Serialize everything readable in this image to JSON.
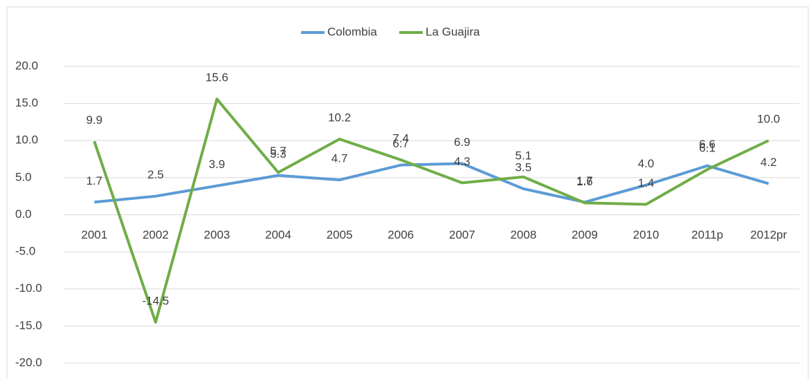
{
  "chart_data": {
    "type": "line",
    "categories": [
      "2001",
      "2002",
      "2003",
      "2004",
      "2005",
      "2006",
      "2007",
      "2008",
      "2009",
      "2010",
      "2011p",
      "2012pr"
    ],
    "series": [
      {
        "name": "Colombia",
        "color": "#5b9bd5",
        "values": [
          1.7,
          2.5,
          3.9,
          5.3,
          4.7,
          6.7,
          6.9,
          3.5,
          1.7,
          4.0,
          6.6,
          4.2
        ],
        "value_labels": [
          "1.7",
          "2.5",
          "3.9",
          "5.3",
          "4.7",
          "6.7",
          "6.9",
          "3.5",
          "1.7",
          "4.0",
          "6.6",
          "4.2"
        ]
      },
      {
        "name": "La Guajira",
        "color": "#70ad47",
        "values": [
          9.9,
          -14.5,
          15.6,
          5.7,
          10.2,
          7.4,
          4.3,
          5.1,
          1.6,
          1.4,
          6.1,
          10.0
        ],
        "value_labels": [
          "9.9",
          "-14.5",
          "15.6",
          "5.7",
          "10.2",
          "7.4",
          "4.3",
          "5.1",
          "1.6",
          "1.4",
          "6.1",
          "10.0"
        ]
      }
    ],
    "ylim": [
      -20,
      20
    ],
    "yticks": [
      {
        "value": -20,
        "label": "-20.0"
      },
      {
        "value": -15,
        "label": "-15.0"
      },
      {
        "value": -10,
        "label": "-10.0"
      },
      {
        "value": -5,
        "label": "-5.0"
      },
      {
        "value": 0,
        "label": "0.0"
      },
      {
        "value": 5,
        "label": "5.0"
      },
      {
        "value": 10,
        "label": "10.0"
      },
      {
        "value": 15,
        "label": "15.0"
      },
      {
        "value": 20,
        "label": "20.0"
      }
    ],
    "grid": true,
    "legend": "top"
  }
}
